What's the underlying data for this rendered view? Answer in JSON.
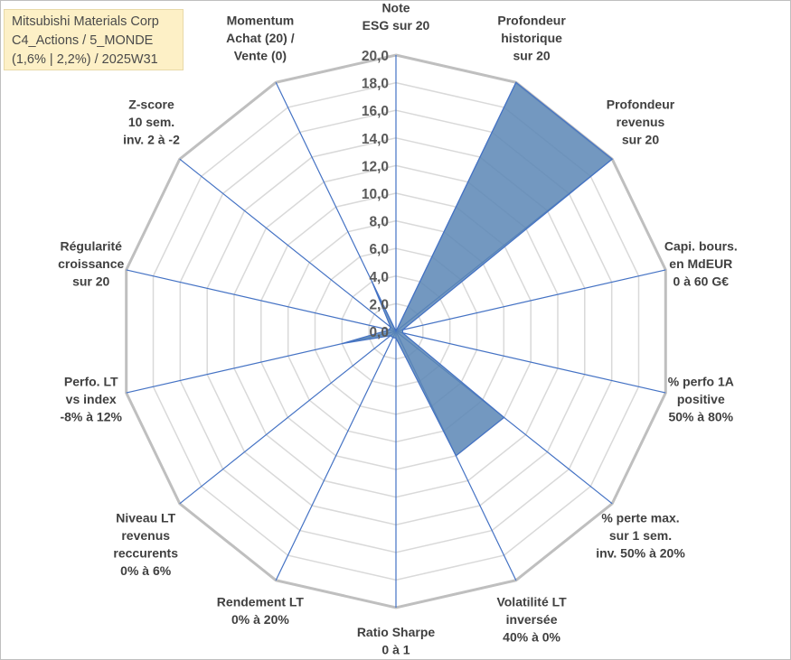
{
  "info_box": {
    "line1": "Mitsubishi Materials Corp",
    "line2": "C4_Actions / 5_MONDE",
    "line3": "(1,6% | 2,2%) / 2025W31"
  },
  "colors": {
    "area_fill": "#5b86b5",
    "area_stroke": "#4472c4",
    "spoke": "#4472c4",
    "grid_outer": "#bfbfbf",
    "grid_inner": "#d9d9d9",
    "info_box_bg": "#fdf0c6"
  },
  "chart_data": {
    "type": "radar",
    "title": "",
    "rmin": 0,
    "rmax": 20,
    "tick_step": 2,
    "ticks": [
      "0,0",
      "2,0",
      "4,0",
      "6,0",
      "8,0",
      "10,0",
      "12,0",
      "14,0",
      "16,0",
      "18,0",
      "20,0"
    ],
    "axes": [
      {
        "label": [
          "Note",
          "ESG sur 20"
        ],
        "value": 0
      },
      {
        "label": [
          "Profondeur",
          "historique",
          "sur 20"
        ],
        "value": 20
      },
      {
        "label": [
          "Profondeur",
          "revenus",
          "sur 20"
        ],
        "value": 20
      },
      {
        "label": [
          "Capi. bours.",
          "en MdEUR",
          "0 à 60 G€"
        ],
        "value": 0.5
      },
      {
        "label": [
          "% perfo 1A",
          "positive",
          "50% à 80%"
        ],
        "value": 0.5
      },
      {
        "label": [
          "% perte max.",
          "sur 1 sem.",
          "inv. 50% à 20%"
        ],
        "value": 10
      },
      {
        "label": [
          "Volatilité LT",
          "inversée",
          "40% à 0%"
        ],
        "value": 10
      },
      {
        "label": [
          "Ratio Sharpe",
          "0 à 1"
        ],
        "value": 0.5
      },
      {
        "label": [
          "Rendement LT",
          "0% à 20%"
        ],
        "value": 0.5
      },
      {
        "label": [
          "Niveau LT",
          "revenus",
          "reccurents",
          "0% à 6%"
        ],
        "value": 0.5
      },
      {
        "label": [
          "Perfo. LT",
          "vs index",
          "-8% à 12%"
        ],
        "value": 4
      },
      {
        "label": [
          "Régularité",
          "croissance",
          "sur 20"
        ],
        "value": 0.5
      },
      {
        "label": [
          "Z-score",
          "10 sem.",
          "inv. 2 à -2"
        ],
        "value": 0.5
      },
      {
        "label": [
          "Momentum",
          "Achat (20) /",
          "Vente (0)"
        ],
        "value": 4
      }
    ]
  }
}
